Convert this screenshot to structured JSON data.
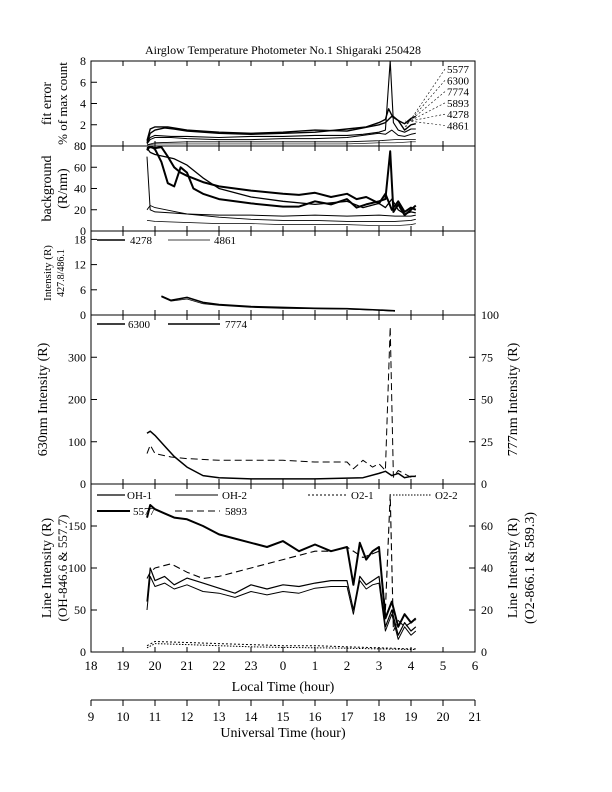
{
  "title": "Airglow Temperature Photometer No.1  Shigaraki  250428",
  "chart_data": [
    {
      "type": "line",
      "panel": "fit-error",
      "ylabel": [
        "fit error",
        "% of max count"
      ],
      "ylim": [
        0,
        8
      ],
      "yticks": [
        "0",
        "2",
        "4",
        "6",
        "8"
      ],
      "legend_labels": [
        "5577",
        "6300",
        "7774",
        "5893",
        "4278",
        "4861"
      ],
      "series": [
        {
          "name": "5577",
          "x": [
            19.75,
            19.85,
            20.0,
            20.3,
            20.6,
            21.0,
            21.5,
            22.0,
            23.0,
            0.0,
            1.0,
            2.0,
            2.6,
            3.0,
            3.2,
            3.3,
            3.4,
            3.6,
            3.8,
            4.0,
            4.15
          ],
          "y": [
            0.3,
            1.2,
            1.5,
            1.7,
            1.6,
            1.4,
            1.3,
            1.2,
            1.1,
            1.2,
            1.3,
            1.6,
            1.8,
            2.2,
            2.5,
            3.5,
            2.9,
            2.4,
            2.1,
            2.6,
            2.8
          ]
        },
        {
          "name": "6300",
          "x": [
            19.75,
            19.85,
            20.0,
            20.4,
            21.0,
            22.0,
            23.0,
            0.0,
            1.0,
            2.0,
            2.5,
            3.0,
            3.2,
            3.4,
            3.6,
            3.8,
            4.0,
            4.15
          ],
          "y": [
            0.5,
            1.6,
            1.8,
            1.8,
            1.5,
            1.3,
            1.2,
            1.3,
            1.5,
            1.4,
            1.7,
            2.0,
            2.2,
            2.8,
            2.4,
            1.5,
            2.0,
            2.1
          ]
        },
        {
          "name": "7774",
          "x": [
            19.75,
            19.85,
            20.0,
            20.5,
            21.0,
            22.0,
            23.0,
            0.0,
            1.0,
            2.0,
            2.5,
            3.0,
            3.2,
            3.35,
            3.45,
            3.6,
            3.8,
            4.0,
            4.15
          ],
          "y": [
            0.3,
            0.8,
            1.0,
            0.9,
            0.9,
            0.8,
            0.9,
            0.9,
            1.0,
            1.0,
            1.1,
            1.3,
            1.5,
            8.0,
            2.2,
            1.5,
            1.3,
            1.6,
            1.6
          ]
        },
        {
          "name": "5893",
          "x": [
            19.75,
            19.85,
            20.0,
            20.5,
            21.0,
            22.0,
            23.0,
            0.0,
            1.0,
            2.0,
            2.5,
            3.0,
            3.2,
            3.4,
            3.6,
            3.8,
            4.0,
            4.15
          ],
          "y": [
            0.2,
            0.6,
            0.8,
            0.8,
            0.7,
            0.6,
            0.6,
            0.7,
            0.7,
            0.8,
            1.0,
            1.2,
            1.1,
            1.5,
            1.0,
            0.9,
            1.1,
            1.2
          ]
        },
        {
          "name": "4278",
          "x": [
            19.75,
            20.0,
            21.0,
            22.0,
            23.0,
            0.0,
            1.0,
            2.0,
            3.0,
            3.5,
            4.0,
            4.15
          ],
          "y": [
            0.1,
            0.3,
            0.4,
            0.4,
            0.4,
            0.4,
            0.4,
            0.4,
            0.5,
            0.6,
            0.6,
            0.6
          ]
        },
        {
          "name": "4861",
          "x": [
            19.75,
            20.0,
            21.0,
            22.0,
            23.0,
            0.0,
            1.0,
            2.0,
            3.0,
            3.5,
            4.0,
            4.15
          ],
          "y": [
            0.1,
            0.2,
            0.2,
            0.2,
            0.2,
            0.2,
            0.2,
            0.2,
            0.3,
            0.3,
            0.4,
            0.4
          ]
        }
      ]
    },
    {
      "type": "line",
      "panel": "background",
      "ylabel": [
        "background",
        "(R/nm)"
      ],
      "ylim": [
        0,
        80
      ],
      "yticks": [
        "0",
        "20",
        "40",
        "60",
        "80"
      ],
      "series": [
        {
          "x": [
            19.75,
            19.85,
            20.0,
            20.2,
            20.4,
            20.6,
            20.8,
            21.0,
            21.5,
            22.0,
            23.0,
            0.0,
            0.5,
            1.0,
            1.5,
            2.0,
            2.3,
            2.6,
            3.0,
            3.2,
            3.4,
            3.6,
            3.8,
            4.0,
            4.15
          ],
          "y": [
            78,
            79,
            78,
            79,
            70,
            60,
            55,
            52,
            46,
            42,
            38,
            35,
            34,
            36,
            32,
            35,
            30,
            32,
            26,
            35,
            20,
            28,
            18,
            22,
            20
          ]
        },
        {
          "x": [
            19.75,
            19.85,
            20.0,
            20.2,
            20.4,
            20.6,
            20.8,
            21.0,
            21.2,
            21.5,
            22.0,
            23.0,
            0.0,
            0.5,
            1.0,
            1.5,
            2.0,
            2.3,
            2.6,
            3.0,
            3.2,
            3.35,
            3.45,
            3.6,
            3.8,
            4.0,
            4.15
          ],
          "y": [
            76,
            80,
            77,
            65,
            45,
            42,
            60,
            55,
            40,
            35,
            30,
            26,
            23,
            23,
            28,
            25,
            30,
            22,
            25,
            28,
            30,
            75,
            18,
            25,
            15,
            20,
            24
          ]
        },
        {
          "x": [
            19.75,
            19.85,
            20.0,
            20.3,
            20.6,
            21.0,
            21.5,
            22.0,
            23.0,
            0.0,
            1.0,
            2.0,
            2.5,
            3.0,
            3.2,
            3.4,
            3.6,
            3.8,
            4.0,
            4.15
          ],
          "y": [
            78,
            74,
            72,
            70,
            68,
            62,
            50,
            40,
            32,
            28,
            25,
            28,
            22,
            26,
            22,
            30,
            20,
            16,
            18,
            17
          ]
        },
        {
          "x": [
            19.75,
            19.85,
            20.0,
            20.5,
            21.0,
            22.0,
            23.0,
            0.0,
            1.0,
            2.0,
            3.0,
            3.5,
            4.0,
            4.15
          ],
          "y": [
            70,
            20,
            18,
            17,
            16,
            15,
            15,
            14,
            15,
            14,
            15,
            14,
            14,
            15
          ]
        },
        {
          "x": [
            19.75,
            19.85,
            20.0,
            20.5,
            21.0,
            22.0,
            23.0,
            0.0,
            1.0,
            2.0,
            3.0,
            3.5,
            4.0,
            4.15
          ],
          "y": [
            20,
            24,
            22,
            19,
            16,
            13,
            11,
            10,
            10,
            9,
            9,
            9,
            10,
            11
          ]
        },
        {
          "x": [
            19.75,
            20.0,
            21.0,
            22.0,
            23.0,
            0.0,
            1.0,
            2.0,
            3.0,
            3.5,
            4.0,
            4.15
          ],
          "y": [
            10,
            9,
            8,
            7,
            7,
            6,
            6,
            6,
            5,
            5,
            6,
            7
          ]
        }
      ]
    },
    {
      "type": "line",
      "panel": "intensity-427-486",
      "ylabel": [
        "Intensity (R)",
        "427.8/486.1"
      ],
      "ylim": [
        0,
        20
      ],
      "yticks": [
        "0",
        "6",
        "12",
        "18"
      ],
      "legend_labels": [
        "4278",
        "4861"
      ],
      "series": [
        {
          "name": "4278",
          "x": [
            20.2,
            20.5,
            21.0,
            21.5,
            22.0,
            23.0,
            0.0,
            1.0,
            2.0,
            3.0,
            3.5
          ],
          "y": [
            4.5,
            3.5,
            4.2,
            3.0,
            2.5,
            2.0,
            1.8,
            1.6,
            1.5,
            1.2,
            1.0
          ]
        },
        {
          "name": "4861",
          "x": [
            20.2,
            20.5,
            21.0,
            21.5,
            22.0,
            23.0,
            0.0,
            1.0,
            2.0,
            3.0,
            3.5
          ],
          "y": [
            4.3,
            3.3,
            3.8,
            2.7,
            2.3,
            1.8,
            1.6,
            1.5,
            1.4,
            1.1,
            0.9
          ]
        }
      ]
    },
    {
      "type": "line",
      "panel": "630-777",
      "ylabel": "630nm Intensity (R)",
      "y2label": "777nm Intensity (R)",
      "ylim": [
        0,
        400
      ],
      "y2lim": [
        0,
        100
      ],
      "yticks": [
        "0",
        "100",
        "200",
        "300"
      ],
      "y2ticks": [
        "0",
        "25",
        "50",
        "75",
        "100"
      ],
      "legend_labels": [
        "6300",
        "7774"
      ],
      "series": [
        {
          "name": "6300",
          "axis": "left",
          "x": [
            19.75,
            19.85,
            20.0,
            20.3,
            20.6,
            21.0,
            21.5,
            22.0,
            23.0,
            0.0,
            1.0,
            2.0,
            2.5,
            3.0,
            3.2,
            3.4,
            3.6,
            3.8,
            4.0,
            4.15
          ],
          "y": [
            120,
            125,
            115,
            90,
            65,
            40,
            20,
            15,
            12,
            12,
            12,
            14,
            15,
            25,
            30,
            20,
            25,
            15,
            18,
            18
          ]
        },
        {
          "name": "7774",
          "axis": "right",
          "x": [
            19.75,
            19.85,
            20.0,
            20.5,
            21.0,
            22.0,
            23.0,
            0.0,
            1.0,
            2.0,
            2.2,
            2.5,
            2.8,
            3.0,
            3.2,
            3.35,
            3.45,
            3.6,
            3.8,
            4.0,
            4.15
          ],
          "y": [
            18,
            23,
            18,
            16,
            15,
            14,
            14,
            14,
            13,
            13,
            9,
            14,
            10,
            12,
            8,
            93,
            4,
            8,
            6,
            4,
            5
          ]
        }
      ]
    },
    {
      "type": "line",
      "panel": "line-intensity",
      "ylabel": [
        "Line Intensity (R)",
        "(OH-846.6 & 557.7)"
      ],
      "y2label": [
        "Line Intensity (R)",
        "(O2-866.1 & 589.3)"
      ],
      "ylim": [
        0,
        200
      ],
      "y2lim": [
        0,
        80
      ],
      "yticks": [
        "0",
        "50",
        "100",
        "150"
      ],
      "y2ticks": [
        "0",
        "20",
        "40",
        "60"
      ],
      "legend_labels": [
        "OH-1",
        "OH-2",
        "O2-1",
        "O2-2",
        "5577",
        "5893"
      ],
      "series": [
        {
          "name": "OH-1",
          "axis": "left",
          "x": [
            19.75,
            19.85,
            20.0,
            20.3,
            20.6,
            21.0,
            21.5,
            22.0,
            22.5,
            23.0,
            23.5,
            0.0,
            0.5,
            1.0,
            1.5,
            2.0,
            2.2,
            2.4,
            2.6,
            2.8,
            3.0,
            3.2,
            3.4,
            3.6,
            3.8,
            4.0,
            4.15
          ],
          "y": [
            60,
            100,
            85,
            90,
            80,
            88,
            82,
            76,
            70,
            80,
            75,
            80,
            78,
            82,
            85,
            85,
            50,
            90,
            80,
            85,
            90,
            30,
            50,
            20,
            35,
            25,
            30
          ]
        },
        {
          "name": "OH-2",
          "axis": "left",
          "x": [
            19.75,
            19.85,
            20.0,
            20.3,
            20.6,
            21.0,
            21.5,
            22.0,
            22.5,
            23.0,
            23.5,
            0.0,
            0.5,
            1.0,
            1.5,
            2.0,
            2.2,
            2.4,
            2.6,
            2.8,
            3.0,
            3.2,
            3.4,
            3.6,
            3.8,
            4.0,
            4.15
          ],
          "y": [
            50,
            90,
            78,
            82,
            75,
            80,
            72,
            70,
            65,
            72,
            68,
            72,
            70,
            76,
            78,
            78,
            45,
            85,
            75,
            80,
            82,
            25,
            45,
            15,
            30,
            20,
            25
          ]
        },
        {
          "name": "5577",
          "axis": "left",
          "x": [
            19.75,
            19.85,
            20.0,
            20.3,
            20.6,
            21.0,
            21.5,
            22.0,
            22.5,
            23.0,
            23.5,
            0.0,
            0.5,
            1.0,
            1.5,
            2.0,
            2.2,
            2.4,
            2.6,
            2.8,
            3.0,
            3.2,
            3.4,
            3.6,
            3.8,
            4.0,
            4.15
          ],
          "y": [
            160,
            175,
            170,
            165,
            160,
            158,
            150,
            140,
            135,
            130,
            125,
            132,
            120,
            128,
            120,
            125,
            80,
            130,
            110,
            120,
            125,
            40,
            60,
            30,
            45,
            35,
            40
          ]
        },
        {
          "name": "5893",
          "axis": "right",
          "x": [
            19.75,
            19.85,
            20.0,
            20.5,
            21.0,
            21.5,
            22.0,
            22.5,
            23.0,
            23.5,
            0.0,
            0.5,
            1.0,
            1.5,
            2.0,
            2.5,
            3.0,
            3.2,
            3.35,
            3.45,
            3.6,
            3.8,
            4.0,
            4.15
          ],
          "y": [
            35,
            38,
            40,
            42,
            38,
            35,
            36,
            38,
            40,
            42,
            44,
            46,
            48,
            48,
            50,
            45,
            48,
            20,
            75,
            10,
            15,
            12,
            14,
            15
          ]
        },
        {
          "name": "O2-1",
          "axis": "right",
          "x": [
            19.75,
            20.0,
            21.0,
            22.0,
            23.0,
            0.0,
            1.0,
            2.0,
            3.0,
            4.0,
            4.15
          ],
          "y": [
            3,
            5,
            4.5,
            4,
            3.5,
            3,
            3,
            2.5,
            2,
            1.5,
            1.5
          ]
        },
        {
          "name": "O2-2",
          "axis": "right",
          "x": [
            19.75,
            20.0,
            21.0,
            22.0,
            23.0,
            0.0,
            1.0,
            2.0,
            3.0,
            4.0,
            4.15
          ],
          "y": [
            2,
            4,
            3.5,
            3,
            2.5,
            2.2,
            2,
            1.8,
            1.5,
            1.2,
            1.2
          ]
        }
      ]
    }
  ],
  "xaxis_local": {
    "label": "Local Time (hour)",
    "range": [
      18,
      30
    ],
    "ticks": [
      "18",
      "19",
      "20",
      "21",
      "22",
      "23",
      "0",
      "1",
      "2",
      "3",
      "4",
      "5",
      "6"
    ]
  },
  "xaxis_ut": {
    "label": "Universal Time (hour)",
    "range": [
      9,
      21
    ],
    "ticks": [
      "9",
      "10",
      "11",
      "12",
      "13",
      "14",
      "15",
      "16",
      "17",
      "18",
      "19",
      "20",
      "21"
    ]
  }
}
